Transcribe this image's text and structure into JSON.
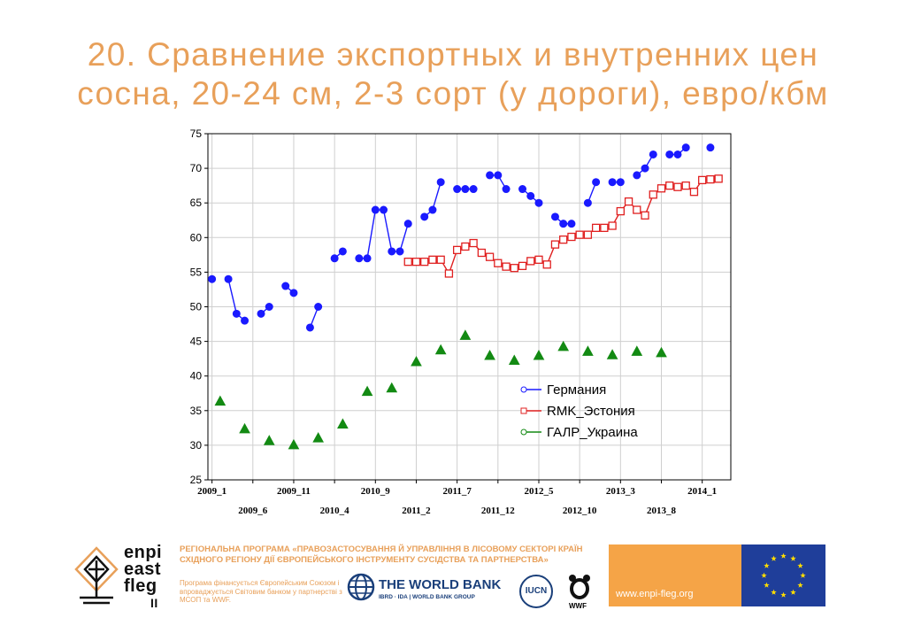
{
  "title": {
    "line1": "20. Сравнение экспортных и внутренних цен",
    "line2": "сосна, 20-24 см, 2-3 сорт (у дороги), евро/кбм"
  },
  "chart_data": {
    "type": "line",
    "title": "",
    "xlabel": "",
    "ylabel": "",
    "ylim": [
      25,
      75
    ],
    "yticks": [
      25,
      30,
      35,
      40,
      45,
      50,
      55,
      60,
      65,
      70,
      75
    ],
    "xlim": [
      1,
      64
    ],
    "grid": true,
    "legend_position": "lower-right inside plot",
    "x_tick_labels": [
      {
        "x": 1,
        "label": "2009_1",
        "row": 0
      },
      {
        "x": 6,
        "label": "2009_6",
        "row": 1
      },
      {
        "x": 11,
        "label": "2009_11",
        "row": 0
      },
      {
        "x": 16,
        "label": "2010_4",
        "row": 1
      },
      {
        "x": 21,
        "label": "2010_9",
        "row": 0
      },
      {
        "x": 26,
        "label": "2011_2",
        "row": 1
      },
      {
        "x": 31,
        "label": "2011_7",
        "row": 0
      },
      {
        "x": 36,
        "label": "2011_12",
        "row": 1
      },
      {
        "x": 41,
        "label": "2012_5",
        "row": 0
      },
      {
        "x": 46,
        "label": "2012_10",
        "row": 1
      },
      {
        "x": 51,
        "label": "2013_3",
        "row": 0
      },
      {
        "x": 56,
        "label": "2013_8",
        "row": 1
      },
      {
        "x": 61,
        "label": "2014_1",
        "row": 0
      }
    ],
    "series": [
      {
        "name": "Германия",
        "color": "#1a1aff",
        "marker": "circle",
        "points": [
          [
            1,
            54
          ],
          [
            3,
            54
          ],
          [
            4,
            49
          ],
          [
            5,
            48
          ],
          [
            7,
            49
          ],
          [
            8,
            50
          ],
          [
            10,
            53
          ],
          [
            11,
            52
          ],
          [
            13,
            47
          ],
          [
            14,
            50
          ],
          [
            16,
            57
          ],
          [
            17,
            58
          ],
          [
            19,
            57
          ],
          [
            20,
            57
          ],
          [
            21,
            64
          ],
          [
            22,
            64
          ],
          [
            23,
            58
          ],
          [
            24,
            58
          ],
          [
            25,
            62
          ],
          [
            27,
            63
          ],
          [
            28,
            64
          ],
          [
            29,
            68
          ],
          [
            31,
            67
          ],
          [
            32,
            67
          ],
          [
            33,
            67
          ],
          [
            35,
            69
          ],
          [
            36,
            69
          ],
          [
            37,
            67
          ],
          [
            39,
            67
          ],
          [
            40,
            66
          ],
          [
            41,
            65
          ],
          [
            43,
            63
          ],
          [
            44,
            62
          ],
          [
            45,
            62
          ],
          [
            47,
            65
          ],
          [
            48,
            68
          ],
          [
            50,
            68
          ],
          [
            51,
            68
          ],
          [
            53,
            69
          ],
          [
            54,
            70
          ],
          [
            55,
            72
          ],
          [
            57,
            72
          ],
          [
            58,
            72
          ],
          [
            59,
            73
          ],
          [
            62,
            73
          ]
        ]
      },
      {
        "name": "RMK_Эстония",
        "color": "#e02020",
        "marker": "square",
        "points": [
          [
            25,
            56.5
          ],
          [
            26,
            56.5
          ],
          [
            27,
            56.5
          ],
          [
            28,
            56.8
          ],
          [
            29,
            56.8
          ],
          [
            30,
            54.8
          ],
          [
            31,
            58.2
          ],
          [
            32,
            58.7
          ],
          [
            33,
            59.2
          ],
          [
            34,
            57.8
          ],
          [
            35,
            57.2
          ],
          [
            36,
            56.3
          ],
          [
            37,
            55.8
          ],
          [
            38,
            55.6
          ],
          [
            39,
            55.9
          ],
          [
            40,
            56.6
          ],
          [
            41,
            56.8
          ],
          [
            42,
            56.1
          ],
          [
            43,
            59.0
          ],
          [
            44,
            59.7
          ],
          [
            45,
            60.1
          ],
          [
            46,
            60.4
          ],
          [
            47,
            60.4
          ],
          [
            48,
            61.4
          ],
          [
            49,
            61.4
          ],
          [
            50,
            61.7
          ],
          [
            51,
            63.8
          ],
          [
            52,
            65.2
          ],
          [
            53,
            64.0
          ],
          [
            54,
            63.2
          ],
          [
            55,
            66.2
          ],
          [
            56,
            67.1
          ],
          [
            57,
            67.5
          ],
          [
            58,
            67.3
          ],
          [
            59,
            67.5
          ],
          [
            60,
            66.6
          ],
          [
            61,
            68.3
          ],
          [
            62,
            68.4
          ],
          [
            63,
            68.5
          ]
        ]
      },
      {
        "name": "ГАЛР_Украина",
        "color": "#138a13",
        "marker": "triangle",
        "points": [
          [
            2,
            36.3
          ],
          [
            5,
            32.3
          ],
          [
            8,
            30.6
          ],
          [
            11,
            30.0
          ],
          [
            14,
            31.0
          ],
          [
            17,
            33.0
          ],
          [
            20,
            37.7
          ],
          [
            23,
            38.2
          ],
          [
            26,
            42.0
          ],
          [
            29,
            43.7
          ],
          [
            32,
            45.8
          ],
          [
            35,
            42.9
          ],
          [
            38,
            42.2
          ],
          [
            41,
            42.9
          ],
          [
            44,
            44.2
          ],
          [
            47,
            43.5
          ],
          [
            50,
            43.0
          ],
          [
            53,
            43.5
          ],
          [
            56,
            43.3
          ]
        ]
      }
    ]
  },
  "footer": {
    "logo_text": [
      "enpi",
      "east",
      "fleg",
      "II"
    ],
    "program_text": "РЕГІОНАЛЬНА ПРОГРАМА «ПРАВОЗАСТОСУВАННЯ Й УПРАВЛІННЯ В ЛІСОВОМУ СЕКТОРІ КРАЇН СХІДНОГО РЕГІОНУ ДІЇ ЄВРОПЕЙСЬКОГО ІНСТРУМЕНТУ СУСІДСТВА ТА ПАРТНЕРСТВА»",
    "funding_text": "Програма фінансується Європейським Союзом і впроваджується Світовим банком у партнерстві з МСОП та WWF.",
    "worldbank_title": "THE WORLD BANK",
    "worldbank_sub": "IBRD · IDA | WORLD BANK GROUP",
    "iucn": "IUCN",
    "wwf": "WWF",
    "url": "www.enpi-fleg.org"
  }
}
